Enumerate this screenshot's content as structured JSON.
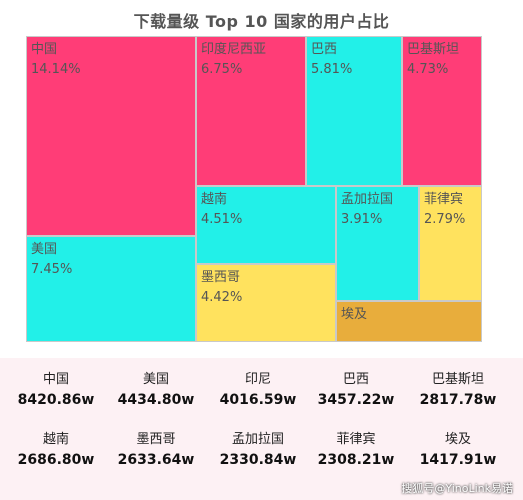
{
  "chart_data": {
    "type": "treemap",
    "title": "下载量级 Top 10 国家的用户占比",
    "items": [
      {
        "name": "中国",
        "value_label": "14.14%",
        "value": 14.14,
        "color": "#ff3d77"
      },
      {
        "name": "美国",
        "value_label": "7.45%",
        "value": 7.45,
        "color": "#22f0e8"
      },
      {
        "name": "印度尼西亚",
        "value_label": "6.75%",
        "value": 6.75,
        "color": "#ff3d77"
      },
      {
        "name": "巴西",
        "value_label": "5.81%",
        "value": 5.81,
        "color": "#22f0e8"
      },
      {
        "name": "巴基斯坦",
        "value_label": "4.73%",
        "value": 4.73,
        "color": "#ff3d77"
      },
      {
        "name": "越南",
        "value_label": "4.51%",
        "value": 4.51,
        "color": "#22f0e8"
      },
      {
        "name": "墨西哥",
        "value_label": "4.42%",
        "value": 4.42,
        "color": "#ffe25e"
      },
      {
        "name": "孟加拉国",
        "value_label": "3.91%",
        "value": 3.91,
        "color": "#22f0e8"
      },
      {
        "name": "菲律宾",
        "value_label": "2.79%",
        "value": 2.79,
        "color": "#ffe25e"
      },
      {
        "name": "埃及",
        "value_label": "",
        "value": null,
        "color": "#e8ad3c"
      }
    ]
  },
  "stats": [
    {
      "name": "中国",
      "value": "8420.86w"
    },
    {
      "name": "美国",
      "value": "4434.80w"
    },
    {
      "name": "印尼",
      "value": "4016.59w"
    },
    {
      "name": "巴西",
      "value": "3457.22w"
    },
    {
      "name": "巴基斯坦",
      "value": "2817.78w"
    },
    {
      "name": "越南",
      "value": "2686.80w"
    },
    {
      "name": "墨西哥",
      "value": "2633.64w"
    },
    {
      "name": "孟加拉国",
      "value": "2330.84w"
    },
    {
      "name": "菲律宾",
      "value": "2308.21w"
    },
    {
      "name": "埃及",
      "value": "1417.91w"
    }
  ],
  "watermark": "搜狐号@YinoLink易诺"
}
